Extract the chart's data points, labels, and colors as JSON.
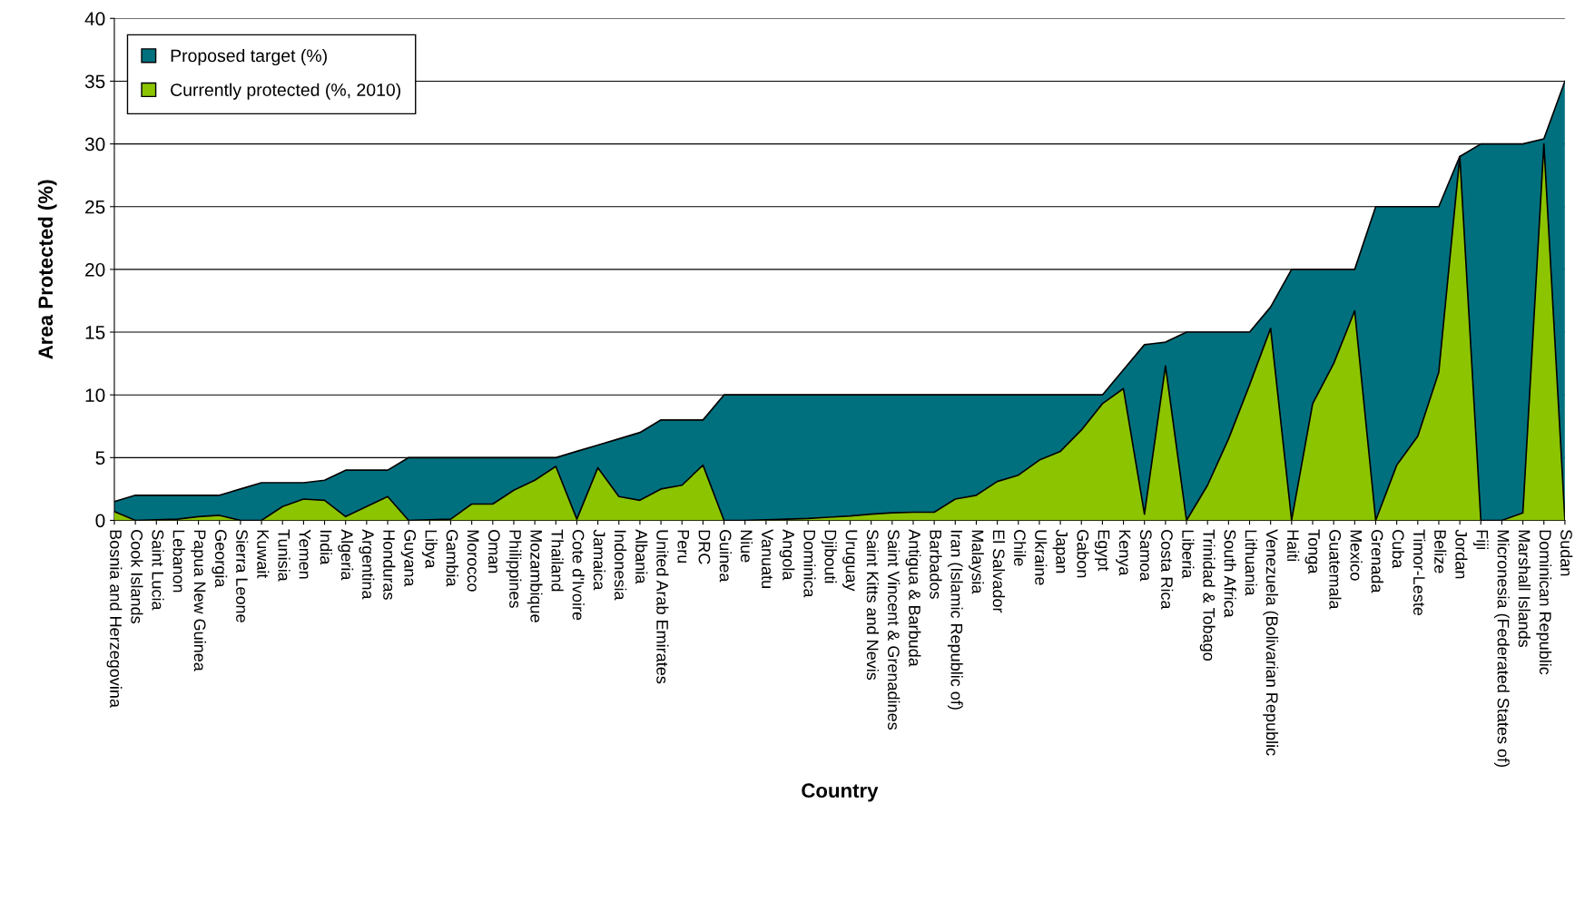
{
  "chart_data": {
    "type": "area",
    "xlabel": "Country",
    "ylabel": "Area Protected (%)",
    "categories": [
      "Bosnia and Herzegovina",
      "Cook Islands",
      "Saint Lucia",
      "Lebanon",
      "Papua New Guinea",
      "Georgia",
      "Sierra Leone",
      "Kuwait",
      "Tunisia",
      "Yemen",
      "India",
      "Algeria",
      "Argentina",
      "Honduras",
      "Guyana",
      "Libya",
      "Gambia",
      "Morocco",
      "Oman",
      "Philippines",
      "Mozambique",
      "Thailand",
      "Cote d'Ivoire",
      "Jamaica",
      "Indonesia",
      "Albania",
      "United Arab Emirates",
      "Peru",
      "DRC",
      "Guinea",
      "Niue",
      "Vanuatu",
      "Angola",
      "Dominica",
      "Djibouti",
      "Uruguay",
      "Saint Kitts and Nevis",
      "Saint Vincent & Grenadines",
      "Antigua & Barbuda",
      "Barbados",
      "Iran (Islamic Republic of)",
      "Malaysia",
      "El Salvador",
      "Chile",
      "Ukraine",
      "Japan",
      "Gabon",
      "Egypt",
      "Kenya",
      "Samoa",
      "Costa Rica",
      "Liberia",
      "Trinidad & Tobago",
      "South Africa",
      "Lithuania",
      "Venezuela (Bolivarian Republic",
      "Haiti",
      "Tonga",
      "Guatemala",
      "Mexico",
      "Grenada",
      "Cuba",
      "Timor-Leste",
      "Belize",
      "Jordan",
      "Fiji",
      "Micronesia (Federated States of)",
      "Marshall Islands",
      "Dominican Republic",
      "Sudan"
    ],
    "series": [
      {
        "name": "Proposed target (%)",
        "color": "#00707e",
        "values": [
          1.5,
          2,
          2,
          2,
          2,
          2,
          2.5,
          3,
          3,
          3,
          3.2,
          4,
          4,
          4,
          5,
          5,
          5,
          5,
          5,
          5,
          5,
          5,
          5.5,
          6,
          6.5,
          7,
          8,
          8,
          8,
          10,
          10,
          10,
          10,
          10,
          10,
          10,
          10,
          10,
          10,
          10,
          10,
          10,
          10,
          10,
          10,
          10,
          10,
          10,
          12,
          14,
          14.2,
          15,
          15,
          15,
          15,
          17,
          20,
          20,
          20,
          20,
          25,
          25,
          25,
          25,
          29,
          30,
          30,
          30,
          30.4,
          35
        ]
      },
      {
        "name": "Currently protected (%, 2010)",
        "color": "#8cc400",
        "values": [
          0.7,
          0,
          0.05,
          0.1,
          0.3,
          0.4,
          0,
          0,
          1.1,
          1.7,
          1.6,
          0.3,
          1.1,
          1.9,
          0,
          0.05,
          0.1,
          1.3,
          1.3,
          2.4,
          3.2,
          4.3,
          0.1,
          4.2,
          1.9,
          1.6,
          2.5,
          2.8,
          4.4,
          0,
          0,
          0.05,
          0.1,
          0.15,
          0.25,
          0.35,
          0.5,
          0.6,
          0.65,
          0.65,
          1.7,
          2,
          3.1,
          3.6,
          4.8,
          5.5,
          7.2,
          9.3,
          10.5,
          0.5,
          12.3,
          0,
          2.8,
          6.5,
          10.8,
          15.3,
          0,
          9.3,
          12.5,
          16.7,
          0,
          4.4,
          6.7,
          11.8,
          29,
          0,
          0,
          0.6,
          30,
          0
        ]
      }
    ],
    "ylim": [
      0,
      40
    ],
    "yticks": [
      0,
      5,
      10,
      15,
      20,
      25,
      30,
      35,
      40
    ],
    "grid": "y",
    "legend": "top left"
  }
}
